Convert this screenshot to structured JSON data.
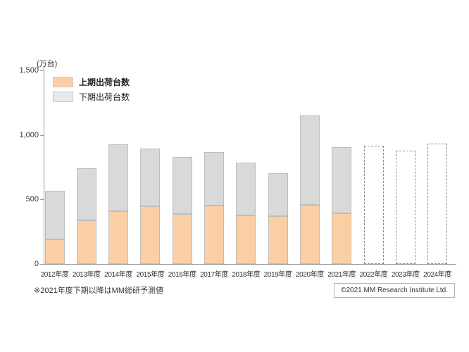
{
  "texts": {
    "footnote": "※2021年度下期以降はMM総研予測値",
    "copyright": "©2021  MM Research Institute Ltd."
  },
  "chart_data": {
    "type": "bar",
    "stacked": true,
    "title": "",
    "unit_label": "(万台)",
    "categories": [
      "2012年度",
      "2013年度",
      "2014年度",
      "2015年度",
      "2016年度",
      "2017年度",
      "2018年度",
      "2019年度",
      "2020年度",
      "2021年度",
      "2022年度",
      "2023年度",
      "2024年度"
    ],
    "series": [
      {
        "name": "上期出荷台数",
        "color": "#fbcfa4",
        "values": [
          190,
          340,
          410,
          445,
          385,
          455,
          375,
          370,
          460,
          395,
          null,
          null,
          null
        ]
      },
      {
        "name": "下期出荷台数",
        "color": "#d9d9d9",
        "values": [
          380,
          400,
          515,
          450,
          445,
          410,
          410,
          335,
          690,
          510,
          null,
          null,
          null
        ]
      }
    ],
    "totals": [
      570,
      740,
      925,
      895,
      830,
      865,
      785,
      705,
      1150,
      905,
      915,
      880,
      935
    ],
    "forecast_totals": [
      null,
      null,
      null,
      null,
      null,
      null,
      null,
      null,
      null,
      null,
      915,
      880,
      935
    ],
    "forecast_style": "dashed-outline-white",
    "ylim": [
      0,
      1500
    ],
    "yticks": [
      0,
      500,
      1000,
      1500
    ],
    "ytick_labels": [
      "0",
      "500",
      "1,000",
      "1,500"
    ],
    "xlabel": "",
    "ylabel": "(万台)",
    "grid": false,
    "legend_position": "top-left-inside"
  }
}
